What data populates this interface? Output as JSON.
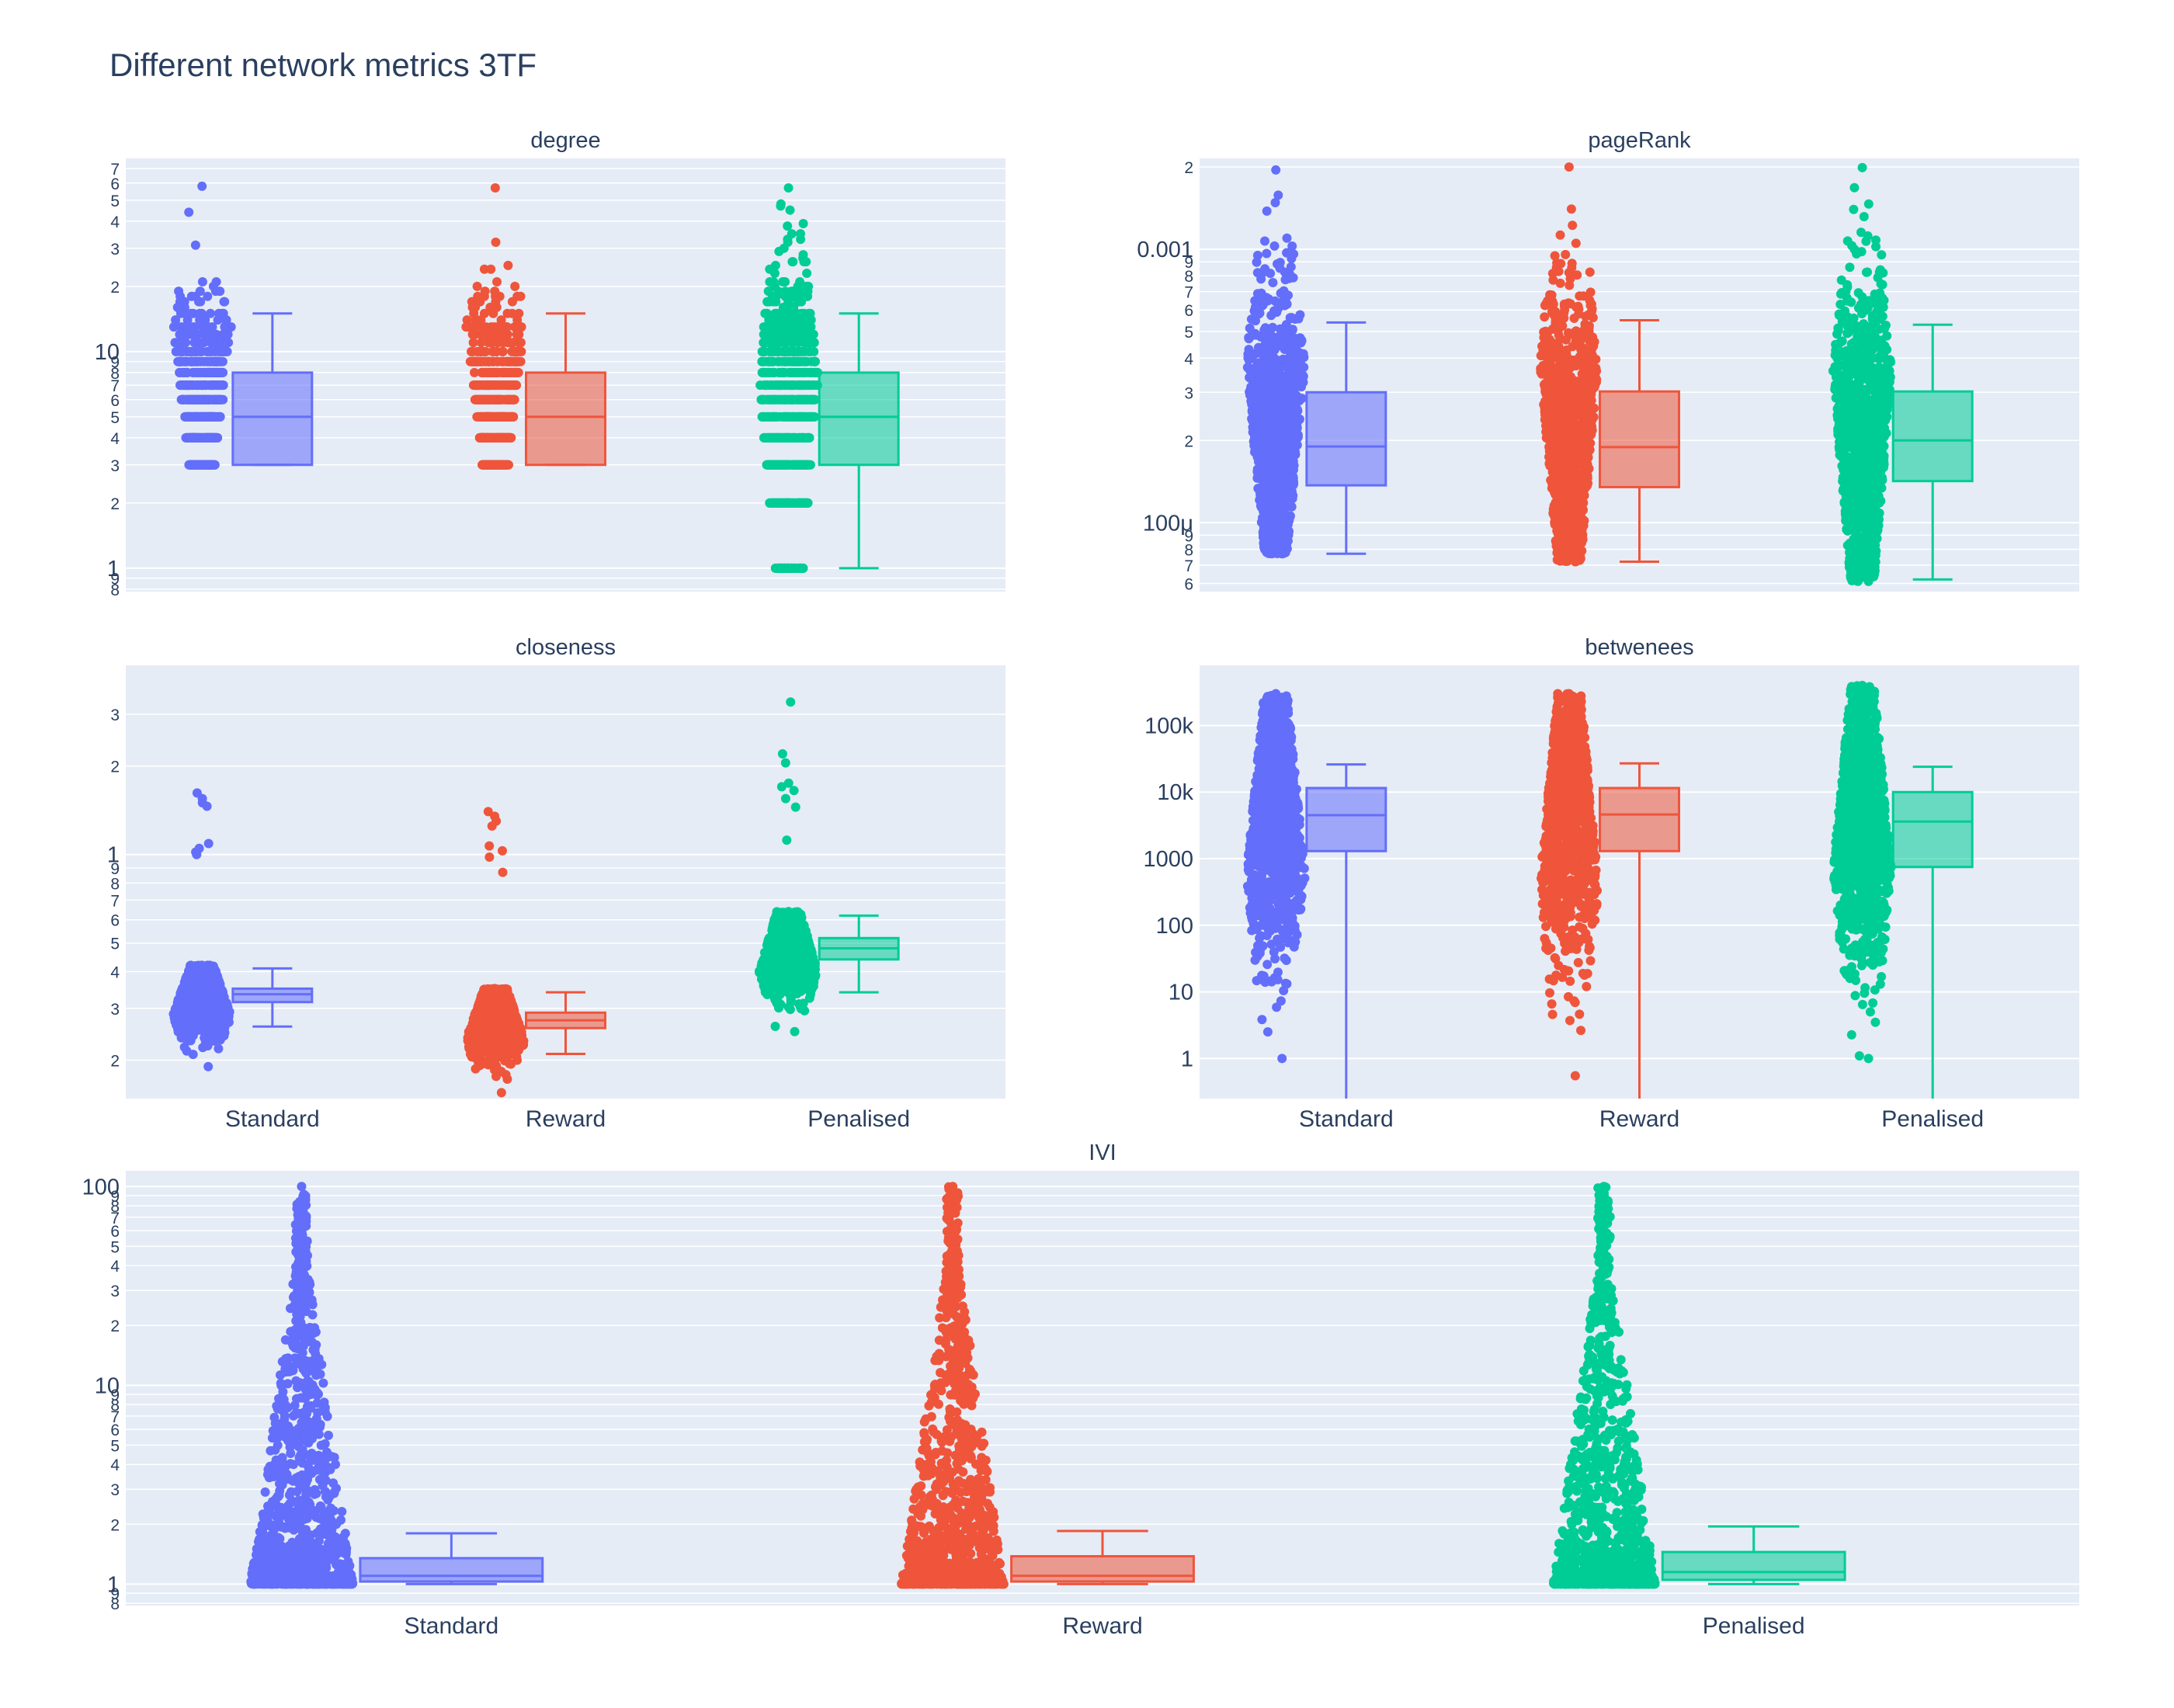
{
  "title": "Different network metrics 3TF",
  "colors": {
    "background": "#ffffff",
    "plot_background": "#E5ECF6",
    "gridline": "#ffffff",
    "text": "#2a3f5f",
    "Standard": "#636efa",
    "Reward": "#EF553B",
    "Penalised": "#00cc96"
  },
  "chart_data": [
    {
      "type": "box",
      "subtitle": "degree",
      "yscale": "log",
      "ylim": [
        0.78,
        78
      ],
      "categories": [
        "Standard",
        "Reward",
        "Penalised"
      ],
      "show_xticklabels": false,
      "ytick_labels": [
        {
          "v": 0.8,
          "t": "8"
        },
        {
          "v": 0.9,
          "t": "9"
        },
        {
          "v": 1,
          "t": "1",
          "major": true
        },
        {
          "v": 2,
          "t": "2"
        },
        {
          "v": 3,
          "t": "3"
        },
        {
          "v": 4,
          "t": "4"
        },
        {
          "v": 5,
          "t": "5"
        },
        {
          "v": 6,
          "t": "6"
        },
        {
          "v": 7,
          "t": "7"
        },
        {
          "v": 8,
          "t": "8"
        },
        {
          "v": 9,
          "t": "9"
        },
        {
          "v": 10,
          "t": "10",
          "major": true
        },
        {
          "v": 20,
          "t": "2"
        },
        {
          "v": 30,
          "t": "3"
        },
        {
          "v": 40,
          "t": "4"
        },
        {
          "v": 50,
          "t": "5"
        },
        {
          "v": 60,
          "t": "6"
        },
        {
          "v": 70,
          "t": "7"
        }
      ],
      "boxes": [
        {
          "name": "Standard",
          "lowerfence": 3,
          "q1": 3,
          "median": 5,
          "q3": 8,
          "upperfence": 15
        },
        {
          "name": "Reward",
          "lowerfence": 3,
          "q1": 3,
          "median": 5,
          "q3": 8,
          "upperfence": 15
        },
        {
          "name": "Penalised",
          "lowerfence": 1,
          "q1": 3,
          "median": 5,
          "q3": 8,
          "upperfence": 15
        }
      ],
      "points": [
        {
          "name": "Standard",
          "min": 3,
          "max": 58,
          "discrete": true
        },
        {
          "name": "Reward",
          "min": 3,
          "max": 57,
          "discrete": true
        },
        {
          "name": "Penalised",
          "min": 1,
          "max": 57,
          "discrete": true
        }
      ]
    },
    {
      "type": "box",
      "subtitle": "pageRank",
      "yscale": "log",
      "ylim": [
        5.6e-05,
        0.00215
      ],
      "categories": [
        "Standard",
        "Reward",
        "Penalised"
      ],
      "show_xticklabels": false,
      "ytick_labels": [
        {
          "v": 6e-05,
          "t": "6"
        },
        {
          "v": 7e-05,
          "t": "7"
        },
        {
          "v": 8e-05,
          "t": "8"
        },
        {
          "v": 9e-05,
          "t": "9"
        },
        {
          "v": 0.0001,
          "t": "100μ",
          "major": true
        },
        {
          "v": 0.0002,
          "t": "2"
        },
        {
          "v": 0.0003,
          "t": "3"
        },
        {
          "v": 0.0004,
          "t": "4"
        },
        {
          "v": 0.0005,
          "t": "5"
        },
        {
          "v": 0.0006,
          "t": "6"
        },
        {
          "v": 0.0007,
          "t": "7"
        },
        {
          "v": 0.0008,
          "t": "8"
        },
        {
          "v": 0.0009,
          "t": "9"
        },
        {
          "v": 0.001,
          "t": "0.001",
          "major": true
        },
        {
          "v": 0.002,
          "t": "2"
        }
      ],
      "boxes": [
        {
          "name": "Standard",
          "lowerfence": 7.7e-05,
          "q1": 0.000137,
          "median": 0.00019,
          "q3": 0.0003,
          "upperfence": 0.00054
        },
        {
          "name": "Reward",
          "lowerfence": 7.2e-05,
          "q1": 0.000135,
          "median": 0.000189,
          "q3": 0.000302,
          "upperfence": 0.00055
        },
        {
          "name": "Penalised",
          "lowerfence": 6.2e-05,
          "q1": 0.000142,
          "median": 0.0002,
          "q3": 0.000302,
          "upperfence": 0.00053
        }
      ],
      "points": [
        {
          "name": "Standard",
          "min": 7.7e-05,
          "max": 0.00195
        },
        {
          "name": "Reward",
          "min": 7.2e-05,
          "max": 0.002
        },
        {
          "name": "Penalised",
          "min": 6.1e-05,
          "max": 0.00199
        }
      ]
    },
    {
      "type": "box",
      "subtitle": "closeness",
      "yscale": "log",
      "ylim": [
        0.148,
        4.4
      ],
      "categories": [
        "Standard",
        "Reward",
        "Penalised"
      ],
      "show_xticklabels": true,
      "ytick_labels": [
        {
          "v": 0.2,
          "t": "2"
        },
        {
          "v": 0.3,
          "t": "3"
        },
        {
          "v": 0.4,
          "t": "4"
        },
        {
          "v": 0.5,
          "t": "5"
        },
        {
          "v": 0.6,
          "t": "6"
        },
        {
          "v": 0.7,
          "t": "7"
        },
        {
          "v": 0.8,
          "t": "8"
        },
        {
          "v": 0.9,
          "t": "9"
        },
        {
          "v": 1,
          "t": "1",
          "major": true
        },
        {
          "v": 2,
          "t": "2"
        },
        {
          "v": 3,
          "t": "3"
        }
      ],
      "boxes": [
        {
          "name": "Standard",
          "lowerfence": 0.26,
          "q1": 0.315,
          "median": 0.335,
          "q3": 0.35,
          "upperfence": 0.41
        },
        {
          "name": "Reward",
          "lowerfence": 0.21,
          "q1": 0.257,
          "median": 0.273,
          "q3": 0.29,
          "upperfence": 0.34
        },
        {
          "name": "Penalised",
          "lowerfence": 0.34,
          "q1": 0.44,
          "median": 0.48,
          "q3": 0.52,
          "upperfence": 0.62
        }
      ],
      "points": [
        {
          "name": "Standard",
          "min": 0.19,
          "max": 0.42
        },
        {
          "name": "Reward",
          "min": 0.155,
          "max": 0.35
        },
        {
          "name": "Penalised",
          "min": 0.25,
          "max": 0.64
        }
      ],
      "outliers": [
        {
          "name": "Standard",
          "values": [
            1.62,
            1.55,
            1.5,
            1.46,
            1.09,
            1.05,
            1.02,
            1.0
          ]
        },
        {
          "name": "Reward",
          "values": [
            1.4,
            1.35,
            1.3,
            1.25,
            1.07,
            1.03,
            0.98,
            0.87
          ]
        },
        {
          "name": "Penalised",
          "values": [
            3.3,
            2.2,
            2.05,
            1.75,
            1.7,
            1.65,
            1.55,
            1.45,
            1.12
          ]
        }
      ]
    },
    {
      "type": "box",
      "subtitle": "betwenees",
      "yscale": "log",
      "ylim": [
        0.25,
        800000
      ],
      "categories": [
        "Standard",
        "Reward",
        "Penalised"
      ],
      "show_xticklabels": true,
      "ytick_labels": [
        {
          "v": 1,
          "t": "1",
          "major": true
        },
        {
          "v": 10,
          "t": "10",
          "major": true
        },
        {
          "v": 100,
          "t": "100",
          "major": true
        },
        {
          "v": 1000,
          "t": "1000",
          "major": true
        },
        {
          "v": 10000,
          "t": "10k",
          "major": true
        },
        {
          "v": 100000,
          "t": "100k",
          "major": true
        }
      ],
      "boxes": [
        {
          "name": "Standard",
          "lowerfence": 0.1,
          "q1": 1300,
          "median": 4500,
          "q3": 11500,
          "upperfence": 26000
        },
        {
          "name": "Reward",
          "lowerfence": 0.1,
          "q1": 1300,
          "median": 4600,
          "q3": 11500,
          "upperfence": 27000
        },
        {
          "name": "Penalised",
          "lowerfence": 0.1,
          "q1": 750,
          "median": 3600,
          "q3": 10000,
          "upperfence": 24000
        }
      ],
      "points": [
        {
          "name": "Standard",
          "min": 1,
          "max": 300000
        },
        {
          "name": "Reward",
          "min": 0.55,
          "max": 300000
        },
        {
          "name": "Penalised",
          "min": 1,
          "max": 400000
        }
      ]
    },
    {
      "type": "box",
      "subtitle": "IVI",
      "yscale": "log",
      "ylim": [
        0.78,
        120
      ],
      "categories": [
        "Standard",
        "Reward",
        "Penalised"
      ],
      "show_xticklabels": true,
      "ytick_labels": [
        {
          "v": 0.8,
          "t": "8"
        },
        {
          "v": 0.9,
          "t": "9"
        },
        {
          "v": 1,
          "t": "1",
          "major": true
        },
        {
          "v": 2,
          "t": "2"
        },
        {
          "v": 3,
          "t": "3"
        },
        {
          "v": 4,
          "t": "4"
        },
        {
          "v": 5,
          "t": "5"
        },
        {
          "v": 6,
          "t": "6"
        },
        {
          "v": 7,
          "t": "7"
        },
        {
          "v": 8,
          "t": "8"
        },
        {
          "v": 9,
          "t": "9"
        },
        {
          "v": 10,
          "t": "10",
          "major": true
        },
        {
          "v": 20,
          "t": "2"
        },
        {
          "v": 30,
          "t": "3"
        },
        {
          "v": 40,
          "t": "4"
        },
        {
          "v": 50,
          "t": "5"
        },
        {
          "v": 60,
          "t": "6"
        },
        {
          "v": 70,
          "t": "7"
        },
        {
          "v": 80,
          "t": "8"
        },
        {
          "v": 90,
          "t": "9"
        },
        {
          "v": 100,
          "t": "100",
          "major": true
        }
      ],
      "boxes": [
        {
          "name": "Standard",
          "lowerfence": 1.0,
          "q1": 1.03,
          "median": 1.1,
          "q3": 1.35,
          "upperfence": 1.8
        },
        {
          "name": "Reward",
          "lowerfence": 1.0,
          "q1": 1.03,
          "median": 1.1,
          "q3": 1.38,
          "upperfence": 1.85
        },
        {
          "name": "Penalised",
          "lowerfence": 1.0,
          "q1": 1.05,
          "median": 1.15,
          "q3": 1.45,
          "upperfence": 1.95
        }
      ],
      "points": [
        {
          "name": "Standard",
          "min": 1.0,
          "max": 100
        },
        {
          "name": "Reward",
          "min": 1.0,
          "max": 100
        },
        {
          "name": "Penalised",
          "min": 1.0,
          "max": 100
        }
      ]
    }
  ]
}
